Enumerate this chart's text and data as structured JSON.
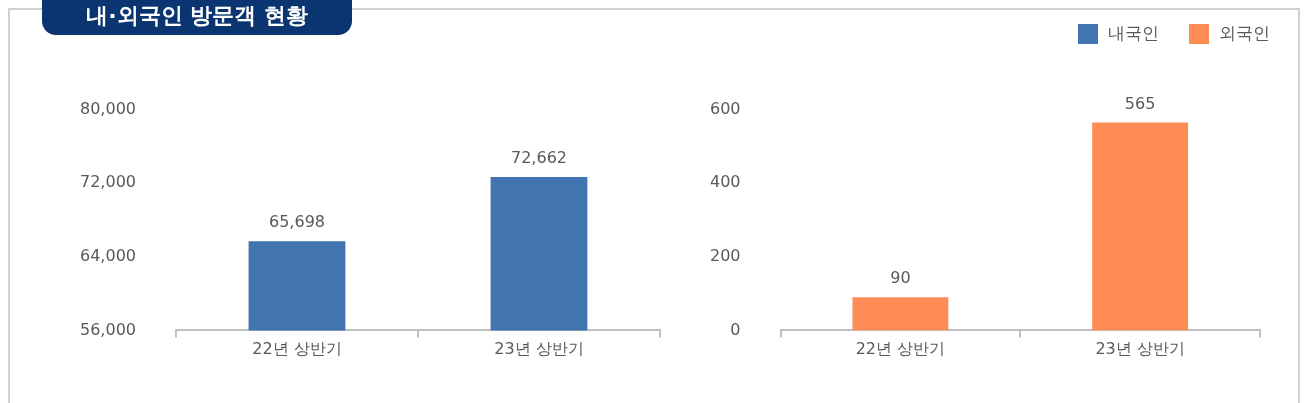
{
  "chart_data": [
    {
      "type": "bar",
      "title": "내·외국인 방문객 현황",
      "categories": [
        "22년 상반기",
        "23년 상반기"
      ],
      "series": [
        {
          "name": "내국인",
          "color": "#4275b0",
          "values": [
            65698,
            72662
          ]
        }
      ],
      "ylim": [
        56000,
        80000
      ],
      "yticks": [
        {
          "value": 56000,
          "label": "56,000"
        },
        {
          "value": 64000,
          "label": "64,000"
        },
        {
          "value": 72000,
          "label": "72,000"
        },
        {
          "value": 80000,
          "label": "80,000"
        }
      ],
      "value_labels": [
        "65,698",
        "72,662"
      ],
      "grid": false,
      "legend": "top right"
    },
    {
      "type": "bar",
      "categories": [
        "22년 상반기",
        "23년 상반기"
      ],
      "series": [
        {
          "name": "외국인",
          "color": "#ff8b55",
          "values": [
            90,
            565
          ]
        }
      ],
      "ylim": [
        0,
        600
      ],
      "yticks": [
        0,
        200,
        400,
        600
      ],
      "data_labels": true,
      "grid": false,
      "legend": "top right"
    }
  ]
}
